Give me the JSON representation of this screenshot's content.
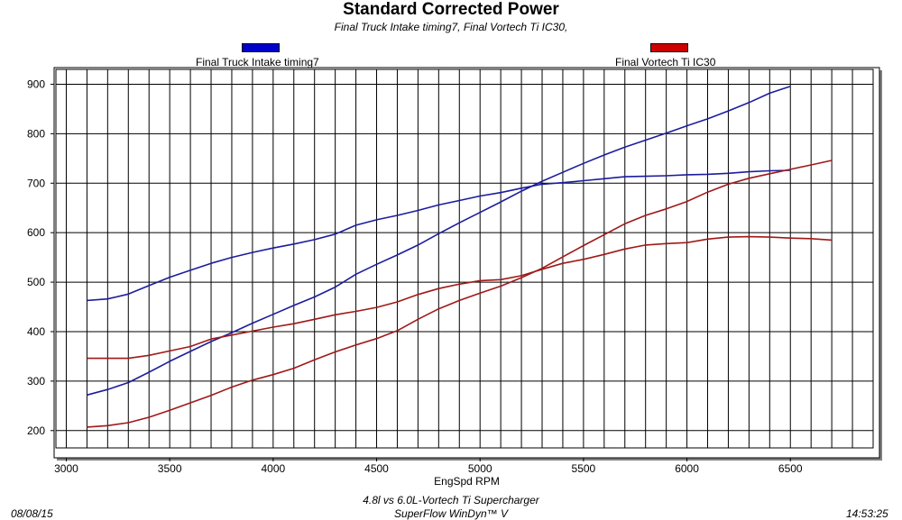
{
  "chart_data": {
    "type": "line",
    "title": "Standard Corrected Power",
    "subtitle": "Final Truck Intake timing7, Final Vortech Ti  IC30,",
    "xlabel": "EngSpd RPM",
    "ylabel": "",
    "xlim": [
      2950,
      6900
    ],
    "ylim": [
      165,
      930
    ],
    "xticks": [
      3000,
      3500,
      4000,
      4500,
      5000,
      5500,
      6000,
      6500
    ],
    "yticks": [
      200,
      300,
      400,
      500,
      600,
      700,
      800,
      900
    ],
    "grid": true,
    "legend": [
      {
        "label": "Final Truck Intake timing7",
        "color": "#0000cc"
      },
      {
        "label": "Final Vortech Ti  IC30",
        "color": "#cc0000"
      }
    ],
    "series": [
      {
        "color": "#1c1c9e",
        "x": [
          3100,
          3200,
          3300,
          3400,
          3500,
          3600,
          3700,
          3800,
          3900,
          4000,
          4100,
          4200,
          4300,
          4400,
          4500,
          4600,
          4700,
          4800,
          4900,
          5000,
          5100,
          5200,
          5300,
          5400,
          5500,
          5600,
          5700,
          5800,
          5900,
          6000,
          6100,
          6200,
          6300,
          6400,
          6500
        ],
        "values": [
          272,
          283,
          297,
          318,
          340,
          360,
          380,
          398,
          417,
          435,
          453,
          470,
          490,
          516,
          536,
          555,
          575,
          598,
          620,
          641,
          662,
          684,
          704,
          722,
          740,
          757,
          773,
          787,
          801,
          816,
          830,
          846,
          863,
          882,
          896
        ]
      },
      {
        "color": "#1c1c9e",
        "x": [
          3100,
          3200,
          3300,
          3400,
          3500,
          3600,
          3700,
          3800,
          3900,
          4000,
          4100,
          4200,
          4300,
          4400,
          4500,
          4600,
          4700,
          4800,
          4900,
          5000,
          5100,
          5200,
          5300,
          5400,
          5500,
          5600,
          5700,
          5800,
          5900,
          6000,
          6100,
          6200,
          6300,
          6400,
          6500
        ],
        "values": [
          463,
          466,
          476,
          493,
          510,
          524,
          538,
          550,
          560,
          569,
          577,
          586,
          597,
          615,
          626,
          635,
          645,
          656,
          665,
          674,
          681,
          690,
          698,
          701,
          705,
          709,
          713,
          714,
          715,
          717,
          718,
          720,
          723,
          725,
          726
        ]
      },
      {
        "color": "#a01818",
        "x": [
          3100,
          3200,
          3300,
          3400,
          3500,
          3600,
          3700,
          3800,
          3900,
          4000,
          4100,
          4200,
          4300,
          4400,
          4500,
          4600,
          4700,
          4800,
          4900,
          5000,
          5100,
          5200,
          5300,
          5400,
          5500,
          5600,
          5700,
          5800,
          5900,
          6000,
          6100,
          6200,
          6300,
          6400,
          6500,
          6600,
          6700
        ],
        "values": [
          207,
          210,
          216,
          227,
          241,
          256,
          271,
          288,
          302,
          313,
          326,
          343,
          359,
          373,
          386,
          402,
          425,
          446,
          463,
          478,
          492,
          509,
          528,
          551,
          574,
          596,
          618,
          635,
          648,
          663,
          682,
          698,
          710,
          719,
          728,
          737,
          746
        ]
      },
      {
        "color": "#a01818",
        "x": [
          3100,
          3200,
          3300,
          3400,
          3500,
          3600,
          3700,
          3800,
          3900,
          4000,
          4100,
          4200,
          4300,
          4400,
          4500,
          4600,
          4700,
          4800,
          4900,
          5000,
          5100,
          5200,
          5300,
          5400,
          5500,
          5600,
          5700,
          5800,
          5900,
          6000,
          6100,
          6200,
          6300,
          6400,
          6500,
          6600,
          6700
        ],
        "values": [
          346,
          346,
          346,
          352,
          361,
          370,
          385,
          393,
          401,
          409,
          416,
          425,
          434,
          441,
          449,
          460,
          475,
          487,
          496,
          503,
          505,
          513,
          526,
          538,
          546,
          556,
          567,
          575,
          578,
          580,
          587,
          591,
          592,
          591,
          589,
          588,
          585
        ]
      }
    ]
  },
  "footer": {
    "date": "08/08/15",
    "line1": "4.8l vs 6.0L-Vortech Ti Supercharger",
    "line2": "SuperFlow WinDyn™ V",
    "time": "14:53:25"
  }
}
